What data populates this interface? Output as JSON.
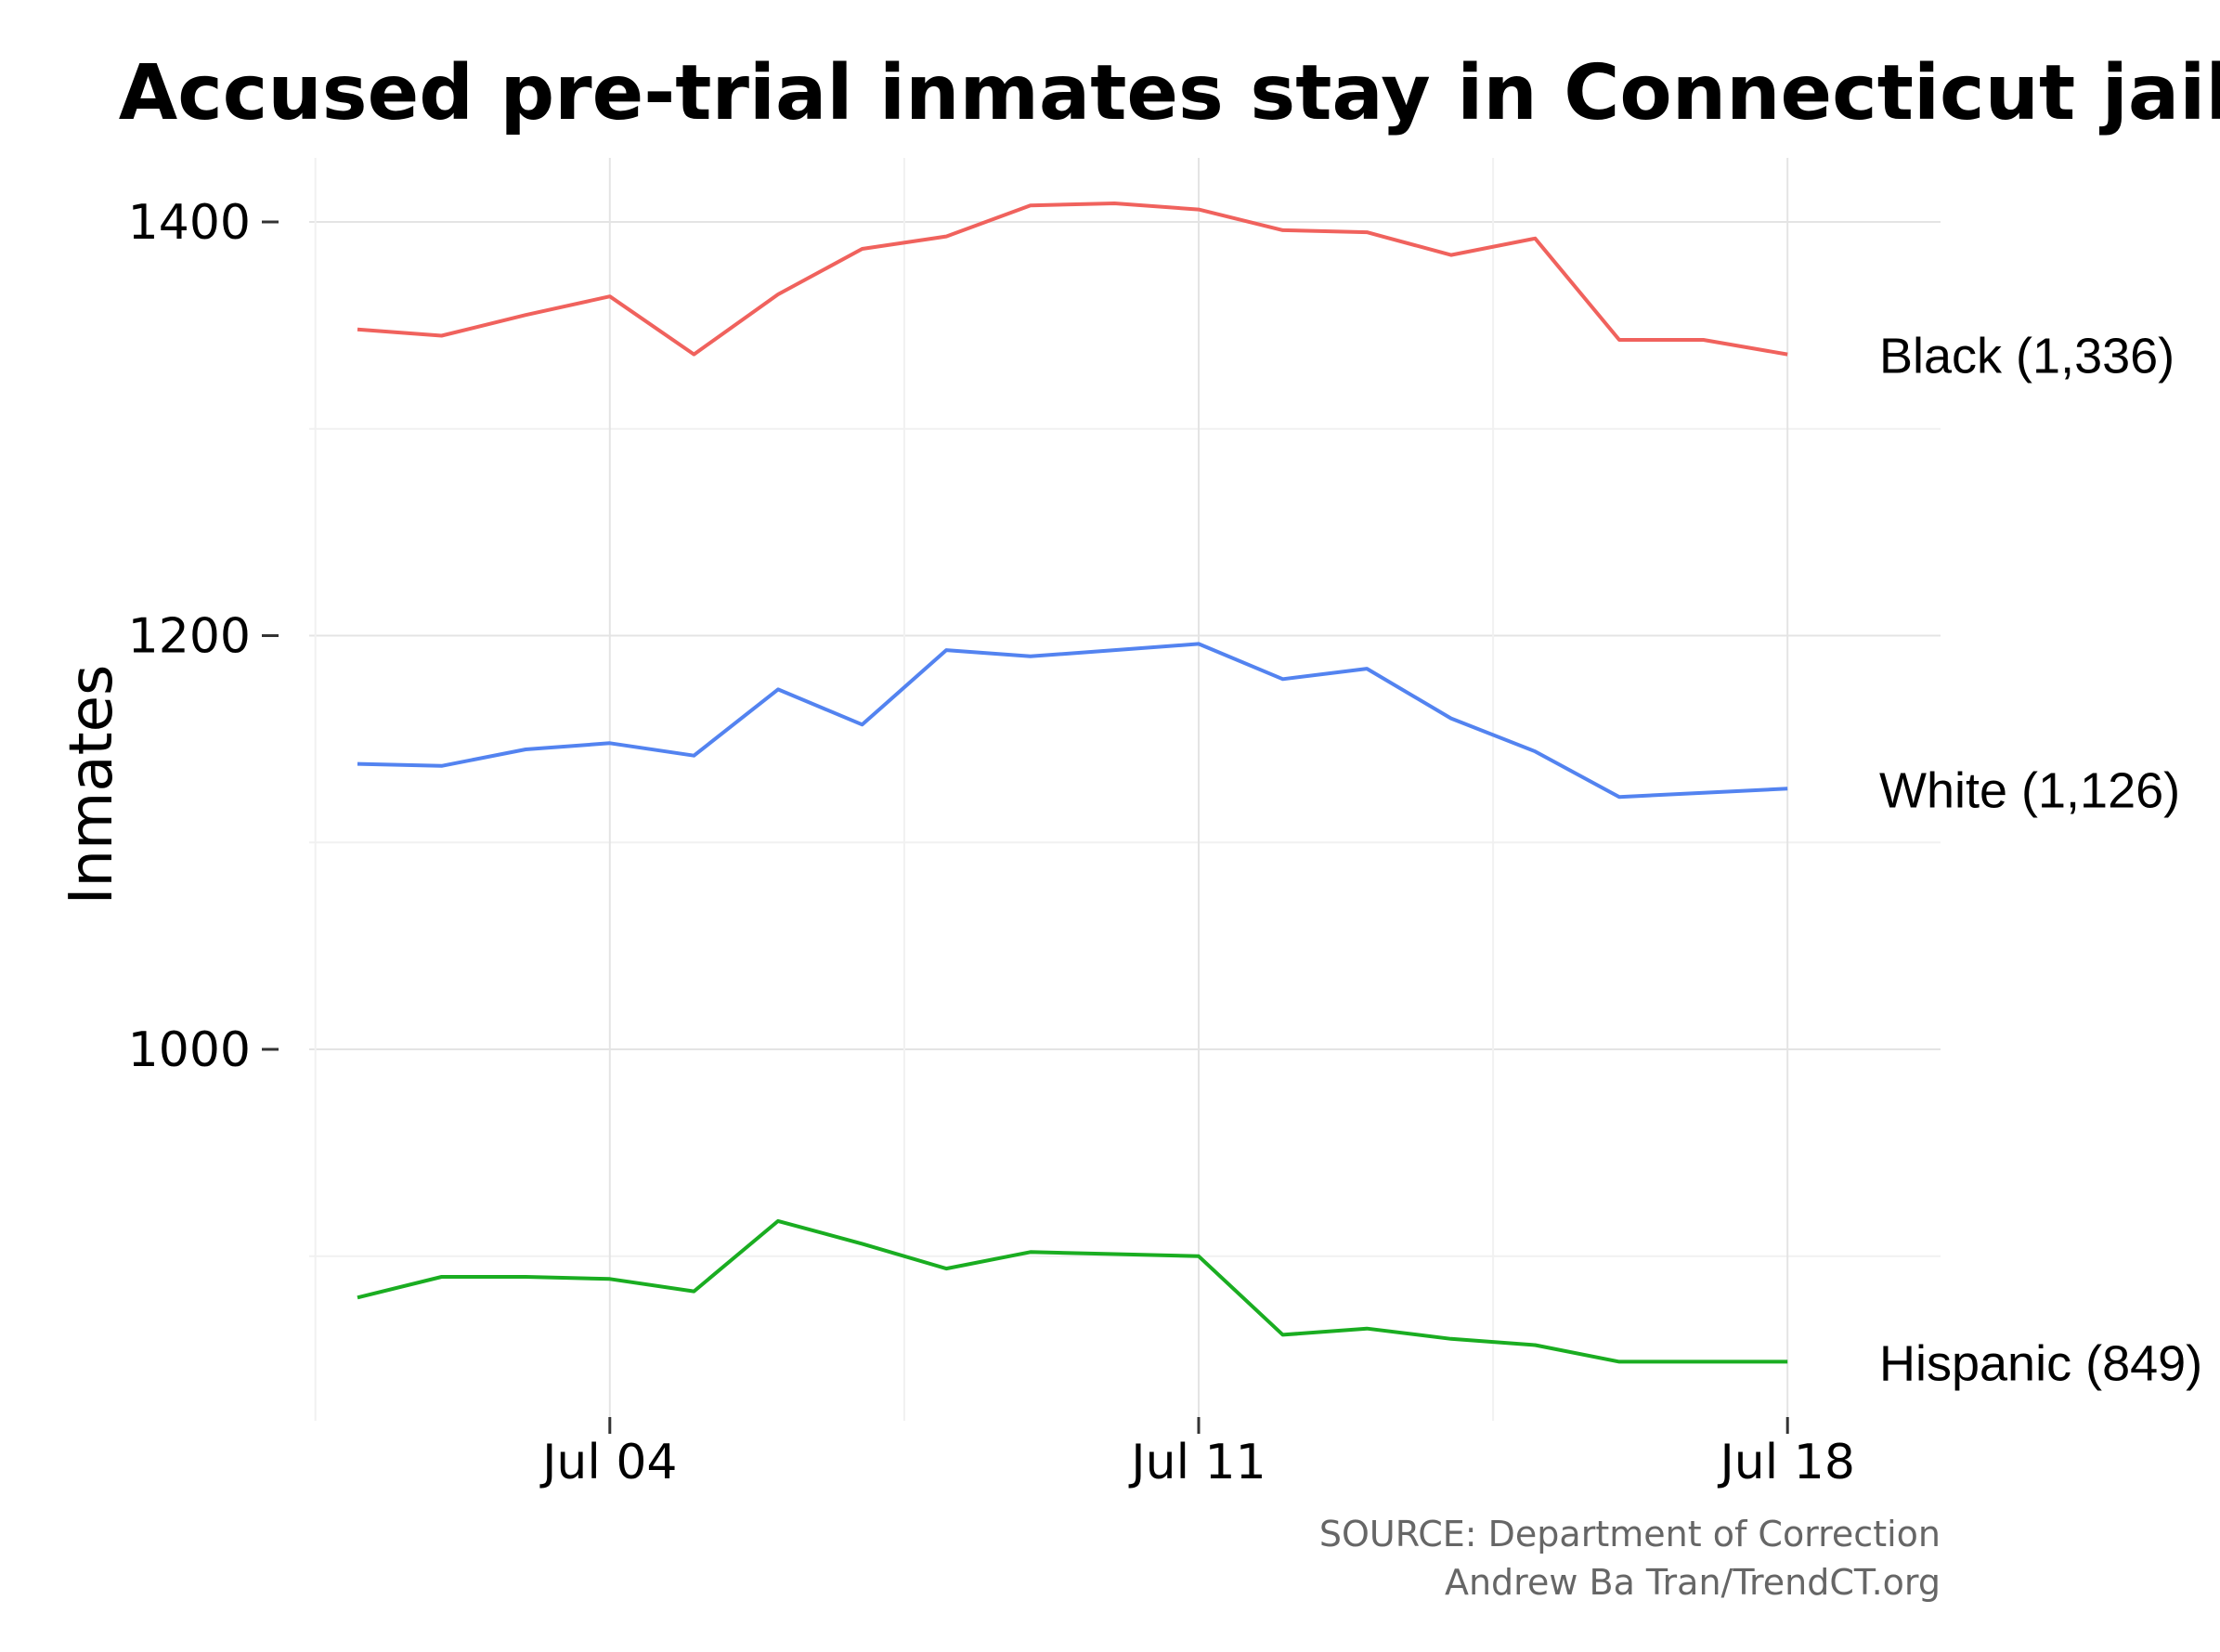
{
  "chart_data": {
    "type": "line",
    "title": "Accused pre-trial inmates stay in Connecticut jails",
    "ylabel": "Inmates",
    "xlabel": "",
    "x": [
      "2016-07-01",
      "2016-07-02",
      "2016-07-03",
      "2016-07-04",
      "2016-07-05",
      "2016-07-06",
      "2016-07-07",
      "2016-07-08",
      "2016-07-09",
      "2016-07-10",
      "2016-07-11",
      "2016-07-12",
      "2016-07-13",
      "2016-07-14",
      "2016-07-15",
      "2016-07-16",
      "2016-07-17",
      "2016-07-18"
    ],
    "x_tick_labels": [
      "Jul 04",
      "Jul 11",
      "Jul 18"
    ],
    "x_tick_dates": [
      "2016-07-04",
      "2016-07-11",
      "2016-07-18"
    ],
    "y_ticks": [
      1000,
      1200,
      1400
    ],
    "ylim": [
      840,
      1430
    ],
    "grid": true,
    "series": [
      {
        "name": "Black (1,336)",
        "color": "#f0625d",
        "values": [
          1348,
          1345,
          1355,
          1364,
          1336,
          1365,
          1387,
          1393,
          1408,
          1409,
          1406,
          1396,
          1395,
          1384,
          1392,
          1343,
          1343,
          1336
        ]
      },
      {
        "name": "White (1,126)",
        "color": "#5383f0",
        "values": [
          1138,
          1137,
          1145,
          1148,
          1142,
          1174,
          1157,
          1193,
          1190,
          1193,
          1196,
          1179,
          1184,
          1160,
          1144,
          1122,
          1124,
          1126
        ]
      },
      {
        "name": "Hispanic (849)",
        "color": "#1aad21",
        "values": [
          880,
          890,
          890,
          889,
          883,
          917,
          906,
          894,
          902,
          901,
          900,
          862,
          865,
          860,
          857,
          849,
          849,
          849
        ]
      }
    ],
    "caption": [
      "SOURCE: Department of Correction",
      "Andrew Ba Tran/TrendCT.org"
    ]
  }
}
